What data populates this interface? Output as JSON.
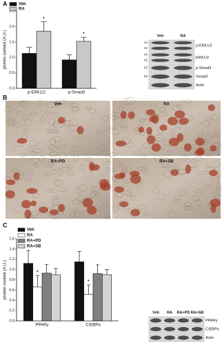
{
  "panel_labels": [
    "A",
    "B",
    "C"
  ],
  "chart_data": [
    {
      "type": "bar",
      "y_label": "protein content (A.U.)",
      "legend": "upper left",
      "categories": [
        "p-ERK1/2",
        "p-Smad3"
      ],
      "series": [
        {
          "name": "Veh",
          "color": "#111111",
          "values": [
            1.13,
            0.92
          ],
          "errors": [
            0.2,
            0.17
          ]
        },
        {
          "name": "RA",
          "color": "#c8c8c8",
          "values": [
            1.85,
            1.52
          ],
          "errors": [
            0.3,
            0.13
          ],
          "significance": [
            "*",
            "*"
          ]
        }
      ],
      "ylim": [
        0,
        2.5
      ],
      "yticks": [
        {
          "value": 0,
          "label": "0.0"
        },
        0.5,
        {
          "value": 1,
          "label": "1.0"
        },
        1.5,
        {
          "value": 2,
          "label": "2.0"
        },
        2.5
      ]
    },
    {
      "type": "bar",
      "y_label": "protein content (A.U.)",
      "legend": "upper left",
      "categories": [
        "PPARγ",
        "C/EBPα"
      ],
      "series": [
        {
          "name": "Veh",
          "color": "#111111",
          "values": [
            1.12,
            1.15
          ],
          "errors": [
            0.25,
            0.2
          ]
        },
        {
          "name": "RA",
          "color": "#ffffff",
          "values": [
            0.66,
            0.52
          ],
          "errors": [
            0.22,
            0.18
          ],
          "significance": [
            "*",
            "*"
          ]
        },
        {
          "name": "RA+PD",
          "color": "#808080",
          "values": [
            0.93,
            0.92
          ],
          "errors": [
            0.17,
            0.17
          ]
        },
        {
          "name": "RA+SB",
          "color": "#d4d4d4",
          "values": [
            0.9,
            0.9
          ],
          "errors": [
            0.12,
            0.1
          ]
        }
      ],
      "ylim": [
        0,
        1.6
      ],
      "yticks": [
        {
          "value": 0,
          "label": "0.0"
        },
        0.2,
        0.4,
        0.6,
        0.8,
        {
          "value": 1,
          "label": "1.0"
        },
        1.2,
        1.4,
        1.6
      ]
    }
  ],
  "blot_a": {
    "lanes": [
      "Veh",
      "RA"
    ],
    "rows": [
      {
        "label": "p-ERK1/2",
        "sizes": [
          "44",
          "42"
        ]
      },
      {
        "label": "ERK1/2",
        "sizes": [
          "44",
          "42"
        ]
      },
      {
        "label": "p-Smad3",
        "sizes": [
          "53"
        ]
      },
      {
        "label": "Smad3",
        "sizes": [
          "53"
        ]
      },
      {
        "label": "Actin"
      }
    ]
  },
  "images": [
    "Veh",
    "RA",
    "RA+PD",
    "RA+SB"
  ],
  "blot_c": {
    "lanes": [
      "Veh",
      "RA",
      "RA+PD",
      "RA+SB"
    ],
    "rows": [
      {
        "label": "PPARγ"
      },
      {
        "label": "C/EBPα"
      },
      {
        "label": "Actin"
      }
    ]
  }
}
